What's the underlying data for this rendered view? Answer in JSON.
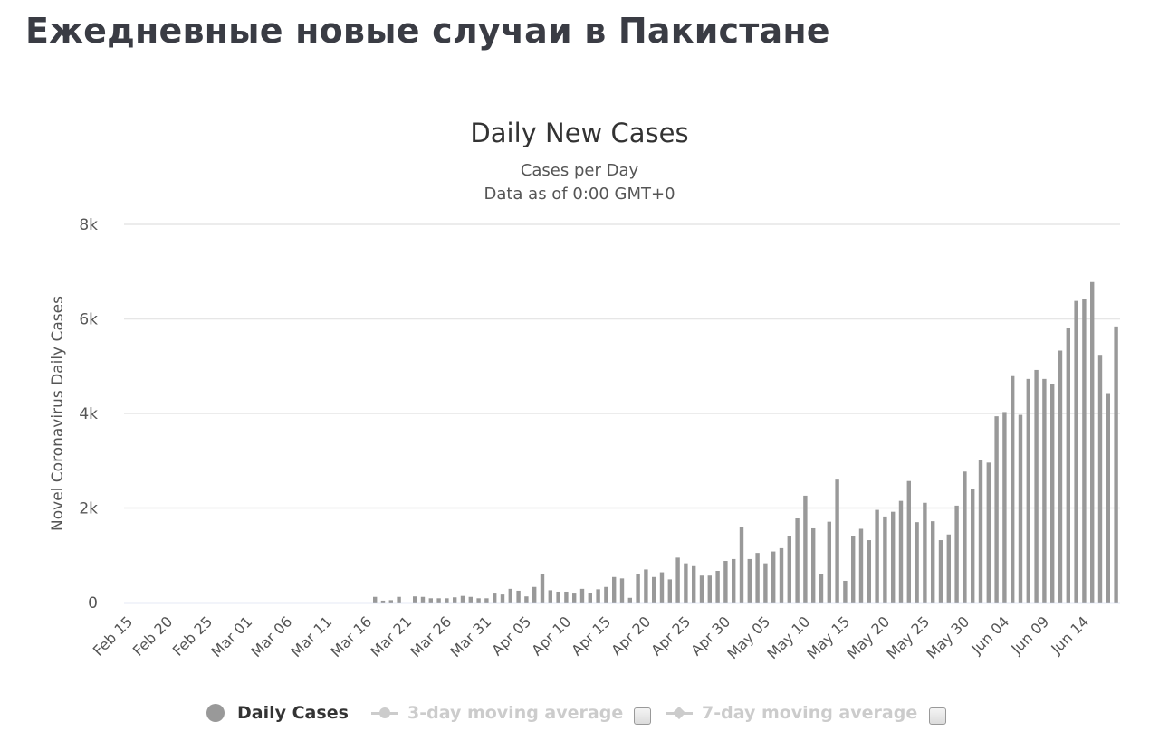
{
  "page_title": "Ежедневные новые случаи в Пакистане",
  "colors": {
    "bar": "#999999",
    "grid": "#e6e6e6",
    "axis": "#ccd6eb",
    "legend_inactive": "#cccccc"
  },
  "legend": {
    "items": [
      {
        "label": "Daily Cases",
        "state": "active",
        "icon": "filled-circle"
      },
      {
        "label": "3-day moving average",
        "state": "inactive",
        "icon": "line-circle-marker"
      },
      {
        "label": "7-day moving average",
        "state": "inactive",
        "icon": "line-diamond-marker"
      }
    ],
    "checkboxes": [
      {
        "checked": false
      },
      {
        "checked": false
      }
    ]
  },
  "chart_data": {
    "type": "bar",
    "title": "Daily New Cases",
    "subtitle_lines": [
      "Cases per Day",
      "Data as of 0:00 GMT+0"
    ],
    "xlabel": "",
    "ylabel": "Novel Coronavirus Daily Cases",
    "ylim": [
      0,
      8000
    ],
    "y_ticks": [
      0,
      2000,
      4000,
      6000,
      8000
    ],
    "y_tick_labels": [
      "0",
      "2k",
      "4k",
      "6k",
      "8k"
    ],
    "x_tick_labels": [
      "Feb 15",
      "Feb 20",
      "Feb 25",
      "Mar 01",
      "Mar 06",
      "Mar 11",
      "Mar 16",
      "Mar 21",
      "Mar 26",
      "Mar 31",
      "Apr 05",
      "Apr 10",
      "Apr 15",
      "Apr 20",
      "Apr 25",
      "Apr 30",
      "May 05",
      "May 10",
      "May 15",
      "May 20",
      "May 25",
      "May 30",
      "Jun 04",
      "Jun 09",
      "Jun 14"
    ],
    "x_tick_every": 5,
    "grid": true,
    "legend_position": "bottom",
    "series": [
      {
        "name": "Daily Cases",
        "start_date": "2020-02-15",
        "values": [
          0,
          0,
          0,
          0,
          0,
          0,
          0,
          0,
          0,
          0,
          0,
          0,
          0,
          0,
          0,
          0,
          0,
          0,
          0,
          0,
          0,
          0,
          0,
          0,
          0,
          0,
          0,
          0,
          0,
          0,
          0,
          120,
          40,
          50,
          120,
          0,
          130,
          120,
          90,
          90,
          90,
          110,
          140,
          120,
          90,
          90,
          190,
          170,
          290,
          250,
          130,
          330,
          600,
          260,
          230,
          230,
          190,
          290,
          210,
          280,
          330,
          540,
          510,
          100,
          600,
          700,
          540,
          640,
          490,
          950,
          830,
          770,
          570,
          570,
          670,
          880,
          920,
          1600,
          920,
          1050,
          830,
          1080,
          1150,
          1400,
          1780,
          2260,
          1570,
          600,
          1710,
          2600,
          460,
          1400,
          1560,
          1320,
          1960,
          1820,
          1920,
          2150,
          2570,
          1700,
          2110,
          1720,
          1320,
          1440,
          2050,
          2770,
          2400,
          3020,
          2960,
          3940,
          4030,
          4790,
          3970,
          4730,
          4920,
          4730,
          4620,
          5330,
          5800,
          6380,
          6420,
          6780,
          5240,
          4430,
          5840
        ]
      }
    ]
  }
}
